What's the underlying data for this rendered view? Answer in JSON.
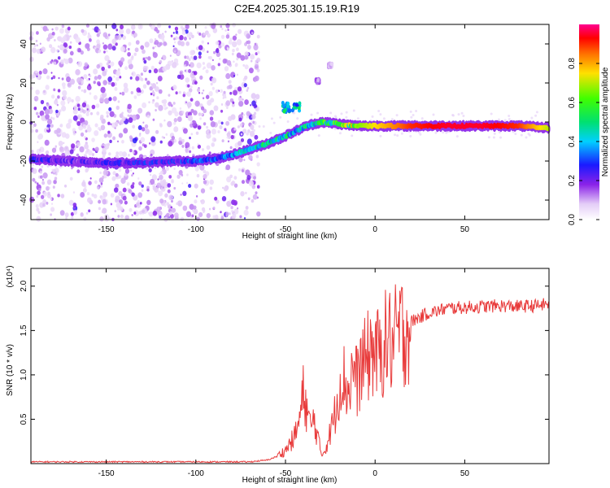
{
  "title": "C2E4.2025.301.15.19.R19",
  "colors": {
    "ridge": "#ff0000",
    "snr_line": "#e83b3b",
    "noise": "#c9a8f0"
  },
  "chart_data": [
    {
      "type": "heatmap",
      "xlabel": "Height of straight line (km)",
      "ylabel": "Frequency (Hz)",
      "xlim": [
        -192,
        97
      ],
      "ylim": [
        -50,
        50
      ],
      "x_ticks": [
        "-150",
        "-100",
        "-50",
        "0",
        "50"
      ],
      "y_ticks": [
        "-40",
        "-20",
        "0",
        "20",
        "40"
      ],
      "colorbar": {
        "label": "Normalized spectral amplitude",
        "range": [
          0,
          1
        ],
        "ticks": [
          "0.0",
          "0.2",
          "0.4",
          "0.6",
          "0.8"
        ]
      },
      "ridge": {
        "x": [
          -192,
          -170,
          -150,
          -130,
          -110,
          -100,
          -90,
          -80,
          -70,
          -60,
          -52,
          -45,
          -38,
          -30,
          -20,
          -10,
          0,
          20,
          40,
          60,
          80,
          97
        ],
        "y": [
          -19,
          -20,
          -21,
          -21,
          -20,
          -20,
          -19,
          -17,
          -14,
          -11,
          -8,
          -5,
          -2,
          0,
          -1,
          -2,
          -2,
          -2,
          -2,
          -2,
          -2,
          -3
        ],
        "amplitude": [
          0.25,
          0.2,
          0.22,
          0.25,
          0.25,
          0.3,
          0.3,
          0.35,
          0.4,
          0.45,
          0.45,
          0.4,
          0.45,
          0.5,
          0.55,
          0.65,
          0.75,
          0.9,
          0.95,
          0.95,
          0.9,
          0.7
        ]
      },
      "features": [
        {
          "x": [
            -52,
            -42
          ],
          "y": [
            5,
            10
          ],
          "amplitude": 0.45
        },
        {
          "x": [
            -33,
            -31
          ],
          "y": [
            20,
            22
          ],
          "amplitude": 0.15
        },
        {
          "x": [
            -26,
            -24
          ],
          "y": [
            28,
            30
          ],
          "amplitude": 0.1
        }
      ]
    },
    {
      "type": "line",
      "xlabel": "Height of straight line (km)",
      "ylabel": "SNR (10 * v/v)",
      "y_multiplier": "(x10⁴)",
      "xlim": [
        -192,
        97
      ],
      "ylim": [
        0,
        2.2
      ],
      "x_ticks": [
        "-150",
        "-100",
        "-50",
        "0",
        "50"
      ],
      "y_ticks": [
        "0.5",
        "1.0",
        "1.5",
        "2.0"
      ],
      "series": [
        {
          "x": [
            -192,
            -150,
            -100,
            -70,
            -60,
            -55,
            -50,
            -45,
            -42,
            -40,
            -38,
            -36,
            -34,
            -30,
            -28,
            -25,
            -22,
            -20,
            -18,
            -15,
            -12,
            -10,
            -8,
            -5,
            -2,
            0,
            3,
            5,
            8,
            10,
            12,
            15,
            18,
            20,
            25,
            30,
            35,
            40,
            50,
            60,
            70,
            80,
            90,
            97
          ],
          "y": [
            0.02,
            0.02,
            0.02,
            0.02,
            0.04,
            0.08,
            0.15,
            0.3,
            0.5,
            0.8,
            0.6,
            0.4,
            0.5,
            0.1,
            0.15,
            0.35,
            0.6,
            0.9,
            1.0,
            0.8,
            1.1,
            0.9,
            1.1,
            1.15,
            1.3,
            1.25,
            1.2,
            1.35,
            1.4,
            1.3,
            1.45,
            1.5,
            1.55,
            1.6,
            1.65,
            1.7,
            1.72,
            1.75,
            1.76,
            1.77,
            1.78,
            1.77,
            1.78,
            1.8
          ]
        }
      ]
    }
  ]
}
